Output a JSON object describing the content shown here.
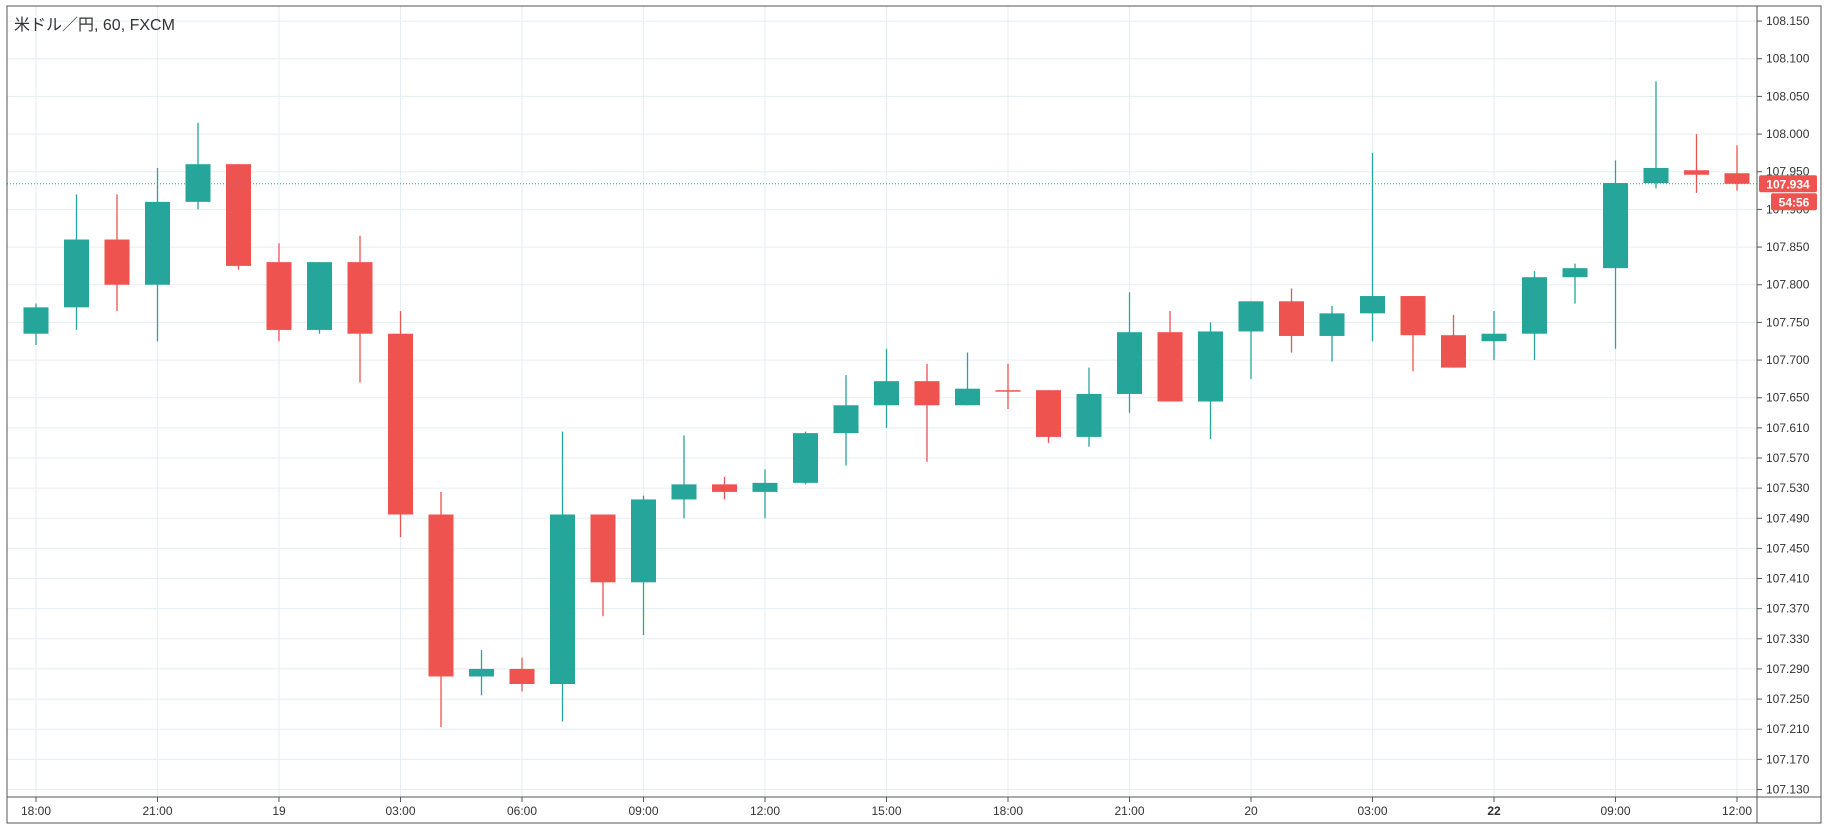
{
  "symbol_title": "米ドル／円, 60, FXCM",
  "price_scale": {
    "ticks": [
      "108.150",
      "108.100",
      "108.050",
      "108.000",
      "107.950",
      "107.900",
      "107.850",
      "107.800",
      "107.750",
      "107.700",
      "107.650",
      "107.610",
      "107.570",
      "107.530",
      "107.490",
      "107.450",
      "107.410",
      "107.370",
      "107.330",
      "107.290",
      "107.250",
      "107.210",
      "107.170",
      "107.130"
    ]
  },
  "time_scale": {
    "labels": [
      {
        "text": "18:00",
        "bar": 0,
        "bold": false
      },
      {
        "text": "21:00",
        "bar": 3,
        "bold": false
      },
      {
        "text": "19",
        "bar": 6,
        "bold": false
      },
      {
        "text": "03:00",
        "bar": 9,
        "bold": false
      },
      {
        "text": "06:00",
        "bar": 12,
        "bold": false
      },
      {
        "text": "09:00",
        "bar": 15,
        "bold": false
      },
      {
        "text": "12:00",
        "bar": 18,
        "bold": false
      },
      {
        "text": "15:00",
        "bar": 21,
        "bold": false
      },
      {
        "text": "18:00",
        "bar": 24,
        "bold": false
      },
      {
        "text": "21:00",
        "bar": 27,
        "bold": false
      },
      {
        "text": "20",
        "bar": 30,
        "bold": false
      },
      {
        "text": "03:00",
        "bar": 33,
        "bold": false
      },
      {
        "text": "22",
        "bar": 36,
        "bold": true
      },
      {
        "text": "09:00",
        "bar": 39,
        "bold": false
      },
      {
        "text": "12:00",
        "bar": 42,
        "bold": false
      }
    ]
  },
  "last_price_label": "107.934",
  "countdown_label": "54:56",
  "colors": {
    "up": "#26a69a",
    "down": "#ef5350",
    "grid": "#e6eef3",
    "border": "#555555",
    "last_price_line": "#26a69a",
    "text": "#333333"
  },
  "chart_data": {
    "type": "candlestick",
    "title": "米ドル／円, 60, FXCM",
    "xlabel": "",
    "ylabel": "",
    "ylim": [
      107.12,
      108.17
    ],
    "grid": true,
    "last_price": 107.934,
    "candles": [
      {
        "o": 107.735,
        "h": 107.775,
        "l": 107.72,
        "c": 107.77
      },
      {
        "o": 107.77,
        "h": 107.92,
        "l": 107.74,
        "c": 107.86
      },
      {
        "o": 107.86,
        "h": 107.92,
        "l": 107.765,
        "c": 107.8
      },
      {
        "o": 107.8,
        "h": 107.955,
        "l": 107.725,
        "c": 107.91
      },
      {
        "o": 107.91,
        "h": 108.015,
        "l": 107.9,
        "c": 107.96
      },
      {
        "o": 107.96,
        "h": 107.96,
        "l": 107.82,
        "c": 107.825
      },
      {
        "o": 107.83,
        "h": 107.855,
        "l": 107.725,
        "c": 107.74
      },
      {
        "o": 107.74,
        "h": 107.83,
        "l": 107.735,
        "c": 107.83
      },
      {
        "o": 107.83,
        "h": 107.865,
        "l": 107.67,
        "c": 107.735
      },
      {
        "o": 107.735,
        "h": 107.765,
        "l": 107.465,
        "c": 107.495
      },
      {
        "o": 107.495,
        "h": 107.525,
        "l": 107.213,
        "c": 107.28
      },
      {
        "o": 107.28,
        "h": 107.315,
        "l": 107.255,
        "c": 107.29
      },
      {
        "o": 107.29,
        "h": 107.305,
        "l": 107.26,
        "c": 107.27
      },
      {
        "o": 107.27,
        "h": 107.605,
        "l": 107.22,
        "c": 107.495
      },
      {
        "o": 107.495,
        "h": 107.495,
        "l": 107.36,
        "c": 107.405
      },
      {
        "o": 107.405,
        "h": 107.52,
        "l": 107.335,
        "c": 107.515
      },
      {
        "o": 107.515,
        "h": 107.6,
        "l": 107.49,
        "c": 107.535
      },
      {
        "o": 107.535,
        "h": 107.545,
        "l": 107.515,
        "c": 107.525
      },
      {
        "o": 107.525,
        "h": 107.555,
        "l": 107.49,
        "c": 107.537
      },
      {
        "o": 107.537,
        "h": 107.605,
        "l": 107.535,
        "c": 107.603
      },
      {
        "o": 107.603,
        "h": 107.68,
        "l": 107.56,
        "c": 107.64
      },
      {
        "o": 107.64,
        "h": 107.715,
        "l": 107.61,
        "c": 107.672
      },
      {
        "o": 107.672,
        "h": 107.695,
        "l": 107.565,
        "c": 107.64
      },
      {
        "o": 107.64,
        "h": 107.71,
        "l": 107.64,
        "c": 107.662
      },
      {
        "o": 107.66,
        "h": 107.695,
        "l": 107.635,
        "c": 107.658
      },
      {
        "o": 107.66,
        "h": 107.66,
        "l": 107.59,
        "c": 107.598
      },
      {
        "o": 107.598,
        "h": 107.69,
        "l": 107.585,
        "c": 107.655
      },
      {
        "o": 107.655,
        "h": 107.79,
        "l": 107.63,
        "c": 107.737
      },
      {
        "o": 107.737,
        "h": 107.765,
        "l": 107.645,
        "c": 107.645
      },
      {
        "o": 107.645,
        "h": 107.75,
        "l": 107.595,
        "c": 107.738
      },
      {
        "o": 107.738,
        "h": 107.778,
        "l": 107.675,
        "c": 107.778
      },
      {
        "o": 107.778,
        "h": 107.795,
        "l": 107.71,
        "c": 107.732
      },
      {
        "o": 107.732,
        "h": 107.772,
        "l": 107.698,
        "c": 107.762
      },
      {
        "o": 107.762,
        "h": 107.975,
        "l": 107.725,
        "c": 107.785
      },
      {
        "o": 107.785,
        "h": 107.785,
        "l": 107.685,
        "c": 107.733
      },
      {
        "o": 107.733,
        "h": 107.76,
        "l": 107.69,
        "c": 107.69
      },
      {
        "o": 107.725,
        "h": 107.765,
        "l": 107.7,
        "c": 107.735
      },
      {
        "o": 107.735,
        "h": 107.818,
        "l": 107.7,
        "c": 107.81
      },
      {
        "o": 107.81,
        "h": 107.828,
        "l": 107.775,
        "c": 107.822
      },
      {
        "o": 107.822,
        "h": 107.965,
        "l": 107.715,
        "c": 107.935
      },
      {
        "o": 107.935,
        "h": 108.07,
        "l": 107.928,
        "c": 107.955
      },
      {
        "o": 107.952,
        "h": 108.0,
        "l": 107.922,
        "c": 107.946
      },
      {
        "o": 107.948,
        "h": 107.985,
        "l": 107.925,
        "c": 107.934
      }
    ]
  }
}
